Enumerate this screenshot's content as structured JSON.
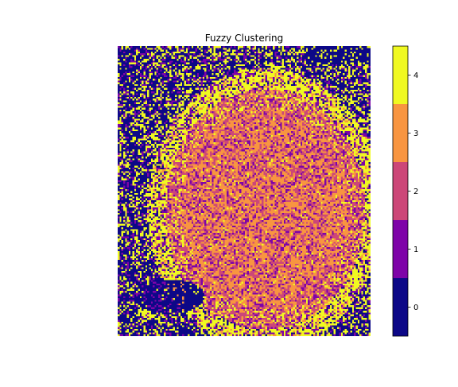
{
  "chart_data": {
    "type": "heatmap",
    "title": "Fuzzy Clustering",
    "xlabel": "",
    "ylabel": "",
    "axes_visible": false,
    "colormap": "plasma",
    "clusters": [
      0,
      1,
      2,
      3,
      4
    ],
    "cluster_colors": [
      "#0d0887",
      "#7e03a8",
      "#cc4778",
      "#f89540",
      "#f0f921"
    ],
    "colorbar": {
      "ticks": [
        "0",
        "1",
        "2",
        "3",
        "4"
      ],
      "range": [
        -0.5,
        4.5
      ],
      "orientation": "vertical",
      "placement": "right"
    },
    "grid": {
      "rows": 160,
      "cols": 137
    }
  }
}
